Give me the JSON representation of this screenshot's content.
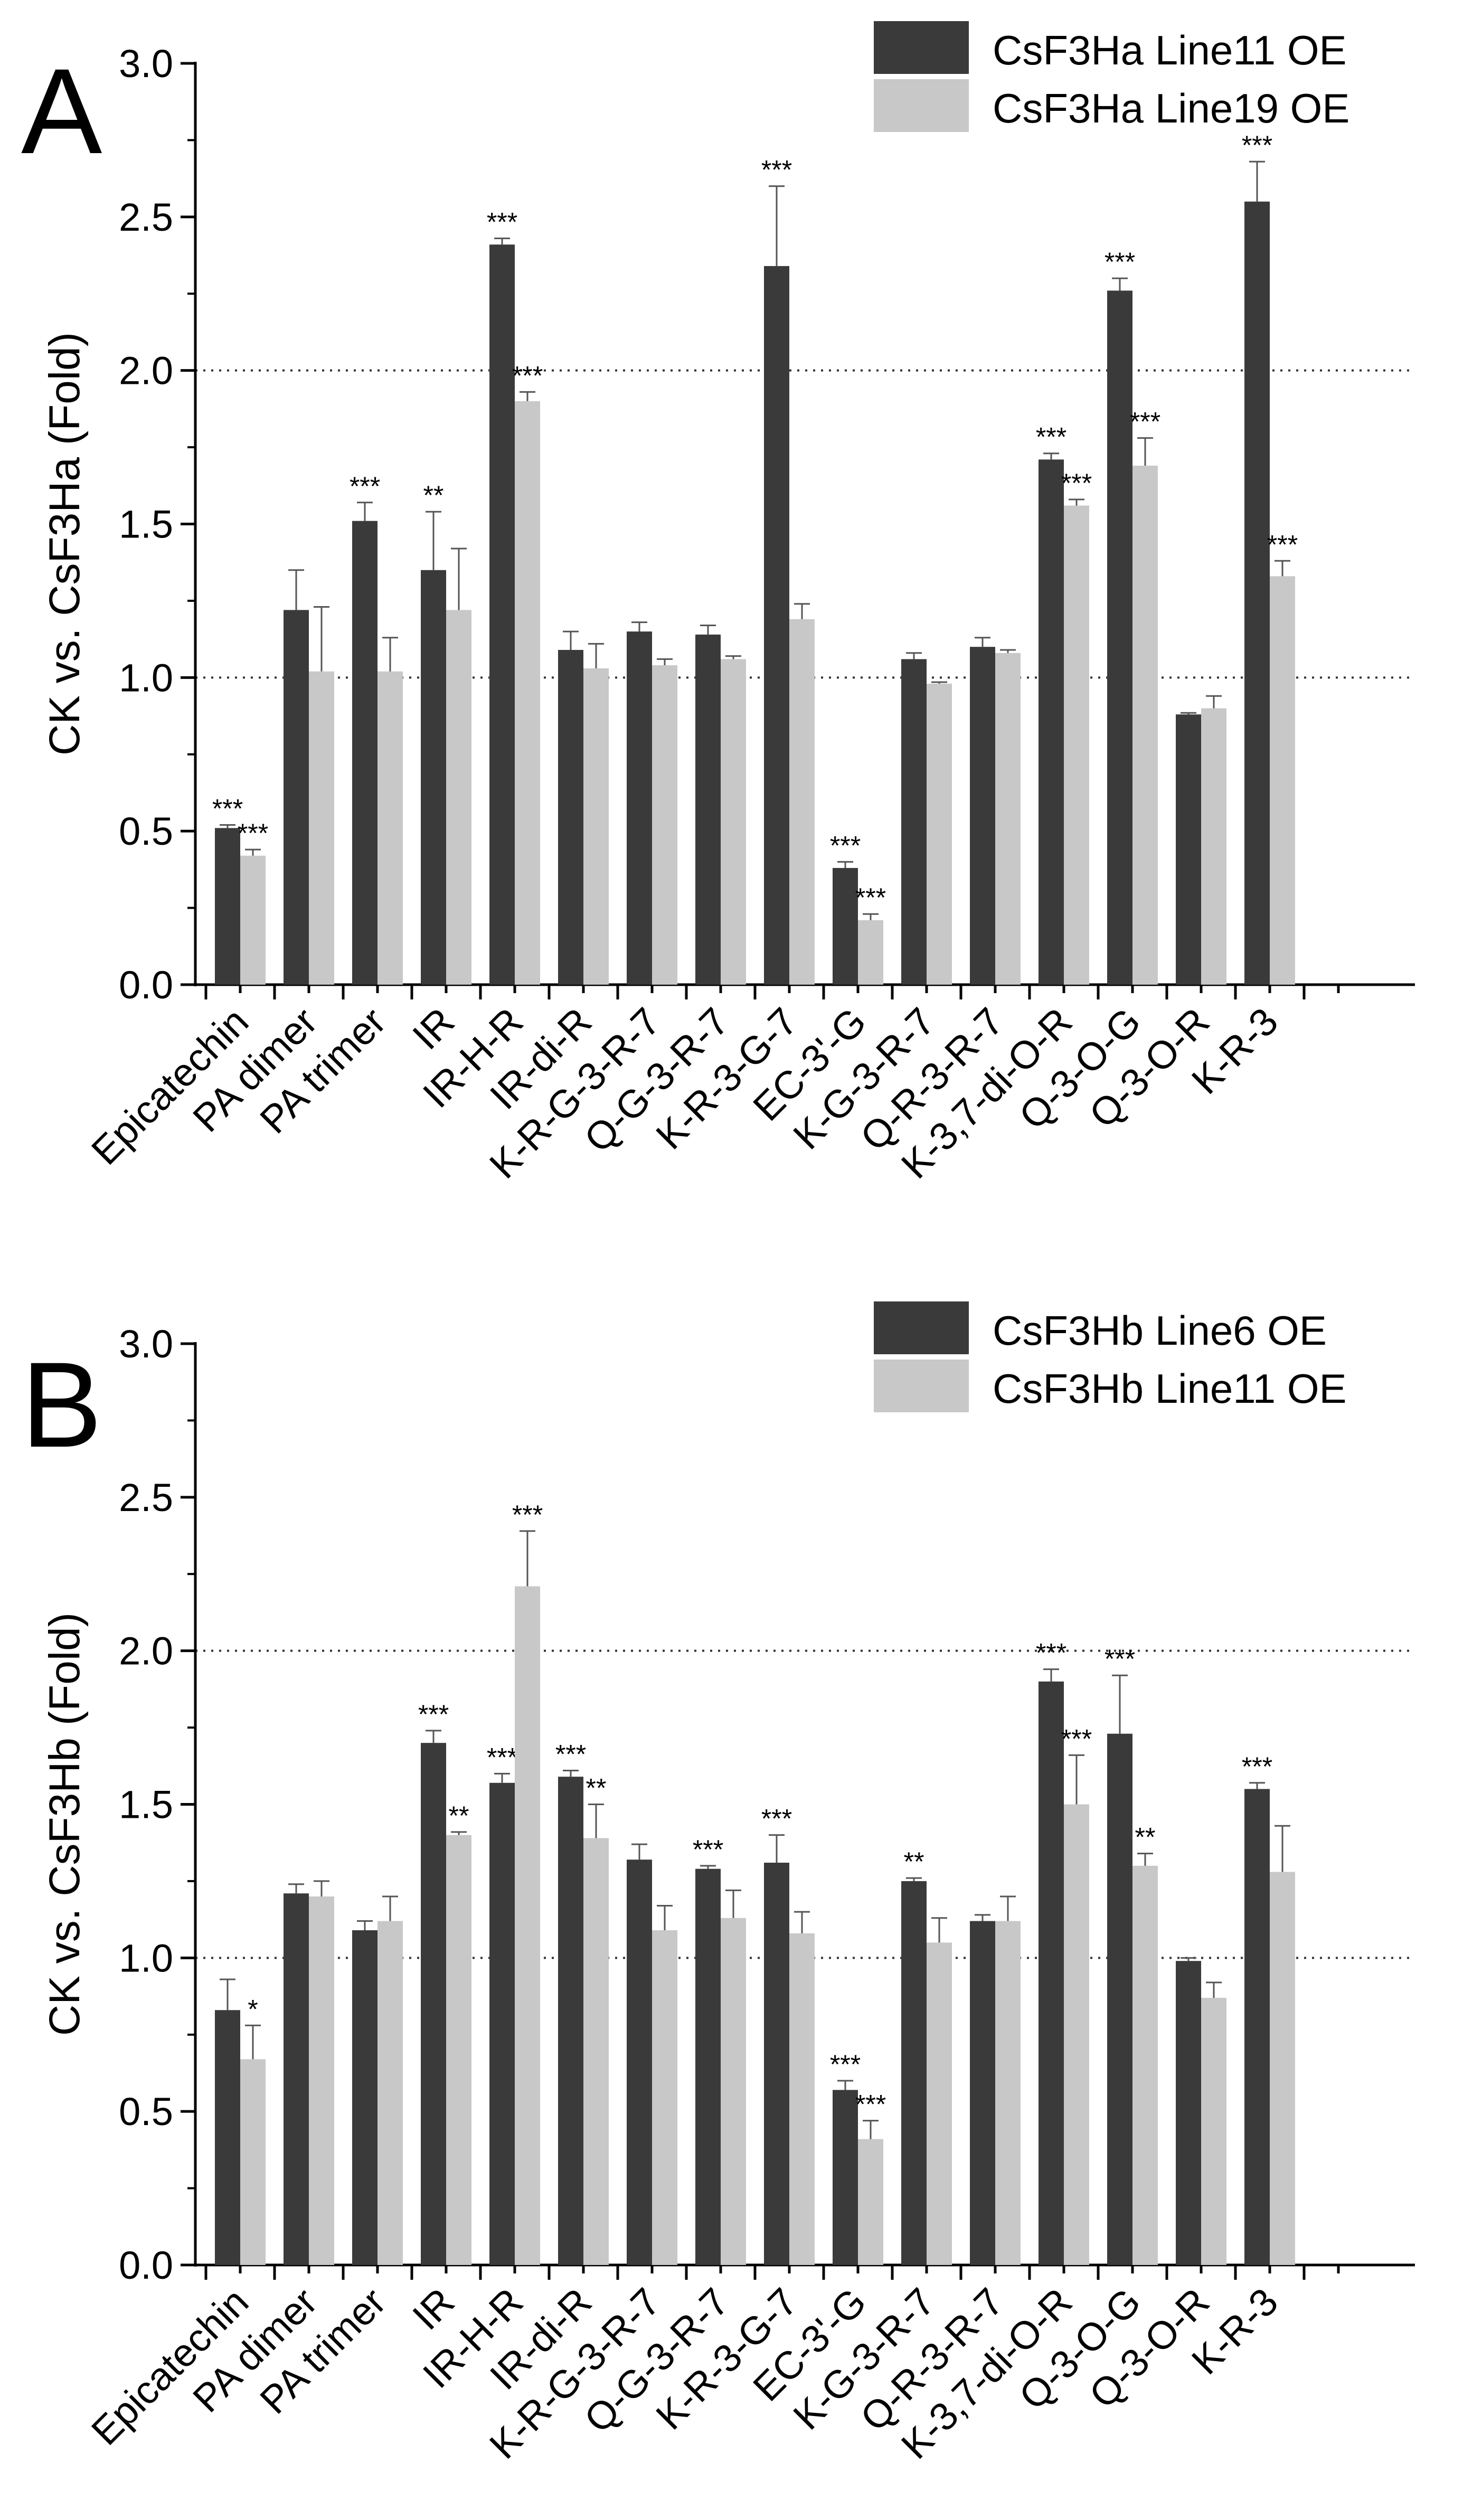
{
  "colors": {
    "series_dark": "#3a3a3a",
    "series_light": "#c8c8c8",
    "axis": "#000000",
    "error_bar": "#555555",
    "reference_line": "#333333"
  },
  "chart_data": [
    {
      "type": "bar",
      "panel_label": "A",
      "ylabel": "CK vs. CsF3Ha (Fold)",
      "xlabel": "",
      "ylim": [
        0,
        3.0
      ],
      "yticks": [
        "0.0",
        "0.5",
        "1.0",
        "1.5",
        "2.0",
        "2.5",
        "3.0"
      ],
      "reference_lines": [
        1.0,
        2.0
      ],
      "legend_position": "top-right",
      "categories": [
        "Epicatechin",
        "PA dimer",
        "PA trimer",
        "IR",
        "IR-H-R",
        "IR-di-R",
        "K-R-G-3-R-7",
        "Q-G-3-R-7",
        "K-R-3-G-7",
        "EC-3'-G",
        "K-G-3-R-7",
        "Q-R-3-R-7",
        "K-3,7-di-O-R",
        "Q-3-O-G",
        "Q-3-O-R",
        "K-R-3"
      ],
      "series": [
        {
          "name": "CsF3Ha Line11 OE",
          "values": [
            0.51,
            1.22,
            1.51,
            1.35,
            2.41,
            1.09,
            1.15,
            1.14,
            2.34,
            0.38,
            1.06,
            1.1,
            1.71,
            2.26,
            0.88,
            2.55
          ],
          "errors": [
            0.01,
            0.13,
            0.06,
            0.19,
            0.02,
            0.06,
            0.03,
            0.03,
            0.26,
            0.02,
            0.02,
            0.03,
            0.02,
            0.04,
            0.005,
            0.13
          ],
          "significance": [
            "***",
            "",
            "***",
            "**",
            "***",
            "",
            "",
            "",
            "***",
            "***",
            "",
            "",
            "***",
            "***",
            "",
            "***"
          ]
        },
        {
          "name": "CsF3Ha Line19 OE",
          "values": [
            0.42,
            1.02,
            1.02,
            1.22,
            1.9,
            1.03,
            1.04,
            1.06,
            1.19,
            0.21,
            0.98,
            1.08,
            1.56,
            1.69,
            0.9,
            1.33
          ],
          "errors": [
            0.02,
            0.21,
            0.11,
            0.2,
            0.03,
            0.08,
            0.02,
            0.01,
            0.05,
            0.02,
            0.005,
            0.01,
            0.02,
            0.09,
            0.04,
            0.05
          ],
          "significance": [
            "***",
            "",
            "",
            "",
            "***",
            "",
            "",
            "",
            "",
            "***",
            "",
            "",
            "***",
            "***",
            "",
            "***"
          ]
        }
      ]
    },
    {
      "type": "bar",
      "panel_label": "B",
      "ylabel": "CK vs. CsF3Hb (Fold)",
      "xlabel": "",
      "ylim": [
        0,
        3.0
      ],
      "yticks": [
        "0.0",
        "0.5",
        "1.0",
        "1.5",
        "2.0",
        "2.5",
        "3.0"
      ],
      "reference_lines": [
        1.0,
        2.0
      ],
      "legend_position": "top-right",
      "categories": [
        "Epicatechin",
        "PA dimer",
        "PA trimer",
        "IR",
        "IR-H-R",
        "IR-di-R",
        "K-R-G-3-R-7",
        "Q-G-3-R-7",
        "K-R-3-G-7",
        "EC-3'-G",
        "K-G-3-R-7",
        "Q-R-3-R-7",
        "K-3,7-di-O-R",
        "Q-3-O-G",
        "Q-3-O-R",
        "K-R-3"
      ],
      "series": [
        {
          "name": "CsF3Hb Line6 OE",
          "values": [
            0.83,
            1.21,
            1.09,
            1.7,
            1.57,
            1.59,
            1.32,
            1.29,
            1.31,
            0.57,
            1.25,
            1.12,
            1.9,
            1.73,
            0.99,
            1.55
          ],
          "errors": [
            0.1,
            0.03,
            0.03,
            0.04,
            0.03,
            0.02,
            0.05,
            0.01,
            0.09,
            0.03,
            0.01,
            0.02,
            0.04,
            0.19,
            0.01,
            0.02
          ],
          "significance": [
            "",
            "",
            "",
            "***",
            "***",
            "***",
            "",
            "***",
            "***",
            "***",
            "**",
            "",
            "***",
            "***",
            "",
            "***"
          ]
        },
        {
          "name": "CsF3Hb Line11 OE",
          "values": [
            0.67,
            1.2,
            1.12,
            1.4,
            2.21,
            1.39,
            1.09,
            1.13,
            1.08,
            0.41,
            1.05,
            1.12,
            1.5,
            1.3,
            0.87,
            1.28
          ],
          "errors": [
            0.11,
            0.05,
            0.08,
            0.01,
            0.18,
            0.11,
            0.08,
            0.09,
            0.07,
            0.06,
            0.08,
            0.08,
            0.16,
            0.04,
            0.05,
            0.15
          ],
          "significance": [
            "*",
            "",
            "",
            "**",
            "***",
            "**",
            "",
            "",
            "",
            "***",
            "",
            "",
            "***",
            "**",
            "",
            ""
          ]
        }
      ]
    }
  ]
}
